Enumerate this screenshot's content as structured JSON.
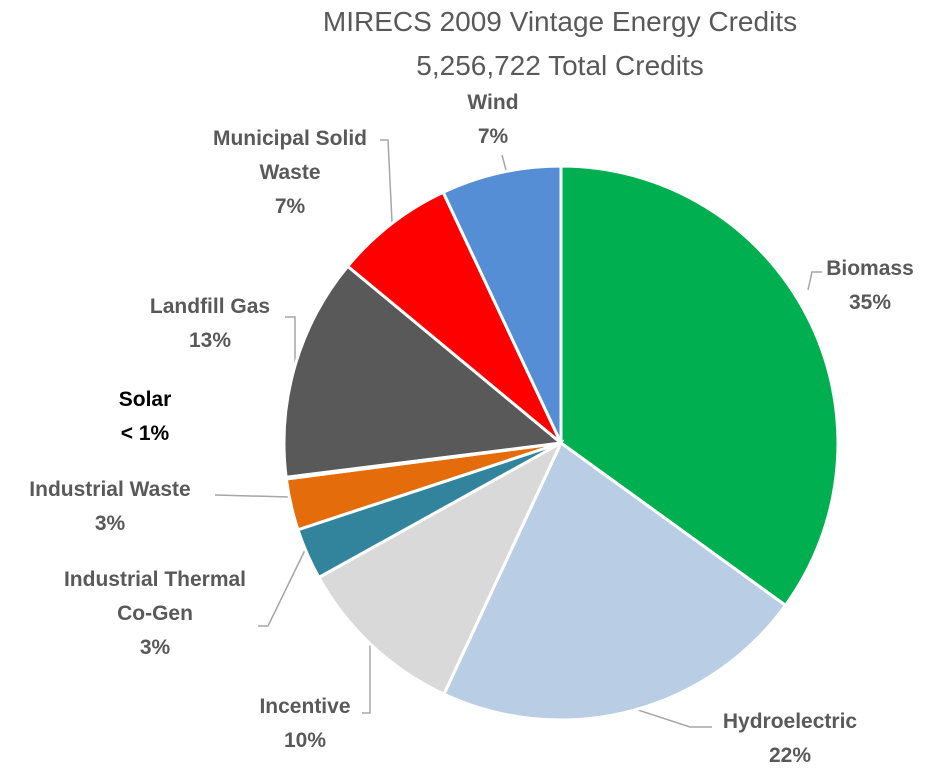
{
  "chart_data": {
    "type": "pie",
    "title": "MIRECS 2009 Vintage Energy Credits",
    "subtitle": "5,256,722 Total Credits",
    "categories": [
      "Biomass",
      "Hydroelectric",
      "Incentive",
      "Industrial Thermal Co-Gen",
      "Industrial Waste",
      "Solar",
      "Landfill Gas",
      "Municipal Solid Waste",
      "Wind"
    ],
    "values": [
      35,
      22,
      10,
      3,
      3,
      0.1,
      13,
      7,
      7
    ],
    "value_labels": [
      "35%",
      "22%",
      "10%",
      "3%",
      "3%",
      "< 1%",
      "13%",
      "7%",
      "7%"
    ],
    "colors": [
      "#00b050",
      "#b9cde5",
      "#d9d9d9",
      "#31849b",
      "#e46c0a",
      "#ffc000",
      "#595959",
      "#ff0000",
      "#558ed5"
    ]
  }
}
